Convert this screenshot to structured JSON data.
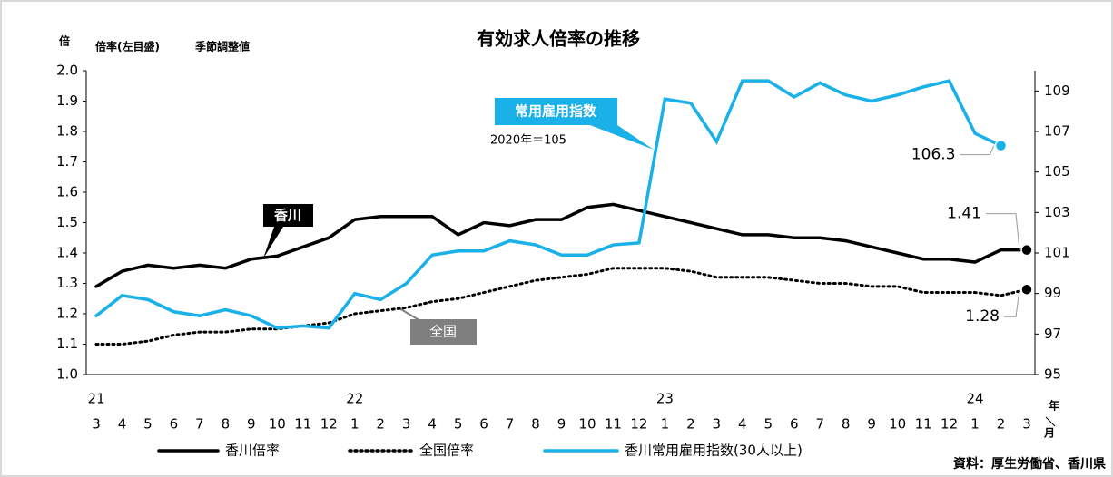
{
  "chart_data": {
    "type": "line",
    "title": "有効求人倍率の推移",
    "y_unit": "倍",
    "y_label": "倍率(左目盛)",
    "subtitle": "季節調整値",
    "categories": [
      "3",
      "4",
      "5",
      "6",
      "7",
      "8",
      "9",
      "10",
      "11",
      "12",
      "1",
      "2",
      "3",
      "4",
      "5",
      "6",
      "7",
      "8",
      "9",
      "10",
      "11",
      "12",
      "1",
      "2",
      "3",
      "4",
      "5",
      "6",
      "7",
      "8",
      "9",
      "10",
      "11",
      "12",
      "1",
      "2",
      "3"
    ],
    "years": [
      {
        "index": 0,
        "label": "21"
      },
      {
        "index": 10,
        "label": "22"
      },
      {
        "index": 22,
        "label": "23"
      },
      {
        "index": 34,
        "label": "24"
      }
    ],
    "x_unit_top": "年",
    "x_unit_bottom": "月",
    "ylim": [
      1.0,
      2.0
    ],
    "yticks": [
      {
        "value": 1.0,
        "label": "1.0"
      },
      1.1,
      1.2,
      1.3,
      1.4,
      1.5,
      1.6,
      1.7,
      1.8,
      1.9,
      {
        "value": 2.0,
        "label": "2.0"
      }
    ],
    "y2lim": [
      95,
      110
    ],
    "y2ticks": [
      95,
      97,
      99,
      101,
      103,
      105,
      107,
      109
    ],
    "series": [
      {
        "name": "香川倍率",
        "color": "#000000",
        "style": "solid",
        "marker_last": true,
        "values": [
          1.29,
          1.34,
          1.36,
          1.35,
          1.36,
          1.35,
          1.38,
          1.39,
          1.42,
          1.45,
          1.51,
          1.52,
          1.52,
          1.52,
          1.46,
          1.5,
          1.49,
          1.51,
          1.51,
          1.55,
          1.56,
          1.54,
          1.52,
          1.5,
          1.48,
          1.46,
          1.46,
          1.45,
          1.45,
          1.44,
          1.42,
          1.4,
          1.38,
          1.38,
          1.37,
          1.41,
          1.41
        ],
        "value_labels": [
          null,
          null,
          null,
          null,
          null,
          null,
          null,
          null,
          null,
          null,
          null,
          null,
          null,
          null,
          null,
          null,
          null,
          null,
          null,
          null,
          null,
          null,
          null,
          null,
          null,
          null,
          null,
          null,
          null,
          null,
          null,
          null,
          null,
          null,
          null,
          null,
          "1.41"
        ]
      },
      {
        "name": "全国倍率",
        "color": "#000000",
        "style": "dotted",
        "marker_last": true,
        "values": [
          1.1,
          1.1,
          1.11,
          1.13,
          1.14,
          1.14,
          1.15,
          1.15,
          1.16,
          1.17,
          1.2,
          1.21,
          1.22,
          1.24,
          1.25,
          1.27,
          1.29,
          1.31,
          1.32,
          1.33,
          1.35,
          1.35,
          1.35,
          1.34,
          1.32,
          1.32,
          1.32,
          1.31,
          1.3,
          1.3,
          1.29,
          1.29,
          1.27,
          1.27,
          1.27,
          1.26,
          1.28
        ],
        "value_labels": [
          null,
          null,
          null,
          null,
          null,
          null,
          null,
          null,
          null,
          null,
          null,
          null,
          null,
          null,
          null,
          null,
          null,
          null,
          null,
          null,
          null,
          null,
          null,
          null,
          null,
          null,
          null,
          null,
          null,
          null,
          null,
          null,
          null,
          null,
          null,
          null,
          "1.28"
        ]
      },
      {
        "name": "香川常用雇用指数(30人以上)",
        "color": "#1ab0e8",
        "style": "solid",
        "axis": "y2",
        "marker_last": true,
        "values": [
          97.9,
          98.9,
          98.7,
          98.1,
          97.9,
          98.2,
          97.9,
          97.3,
          97.4,
          97.3,
          99.0,
          98.7,
          99.5,
          100.9,
          101.1,
          101.1,
          101.6,
          101.4,
          100.9,
          100.9,
          101.4,
          101.5,
          108.6,
          108.4,
          106.5,
          109.5,
          109.5,
          108.7,
          109.4,
          108.8,
          108.5,
          108.8,
          109.2,
          109.5,
          106.9,
          106.3,
          null
        ],
        "value_labels": [
          null,
          null,
          null,
          null,
          null,
          null,
          null,
          null,
          null,
          null,
          null,
          null,
          null,
          null,
          null,
          null,
          null,
          null,
          null,
          null,
          null,
          null,
          null,
          null,
          null,
          null,
          null,
          null,
          null,
          null,
          null,
          null,
          null,
          null,
          null,
          "106.3",
          null
        ]
      }
    ],
    "annotations": {
      "kagawa": "香川",
      "national": "全国",
      "index": "常用雇用指数",
      "base": "2020年＝105"
    },
    "source": "資料：厚生労働省、香川県"
  }
}
